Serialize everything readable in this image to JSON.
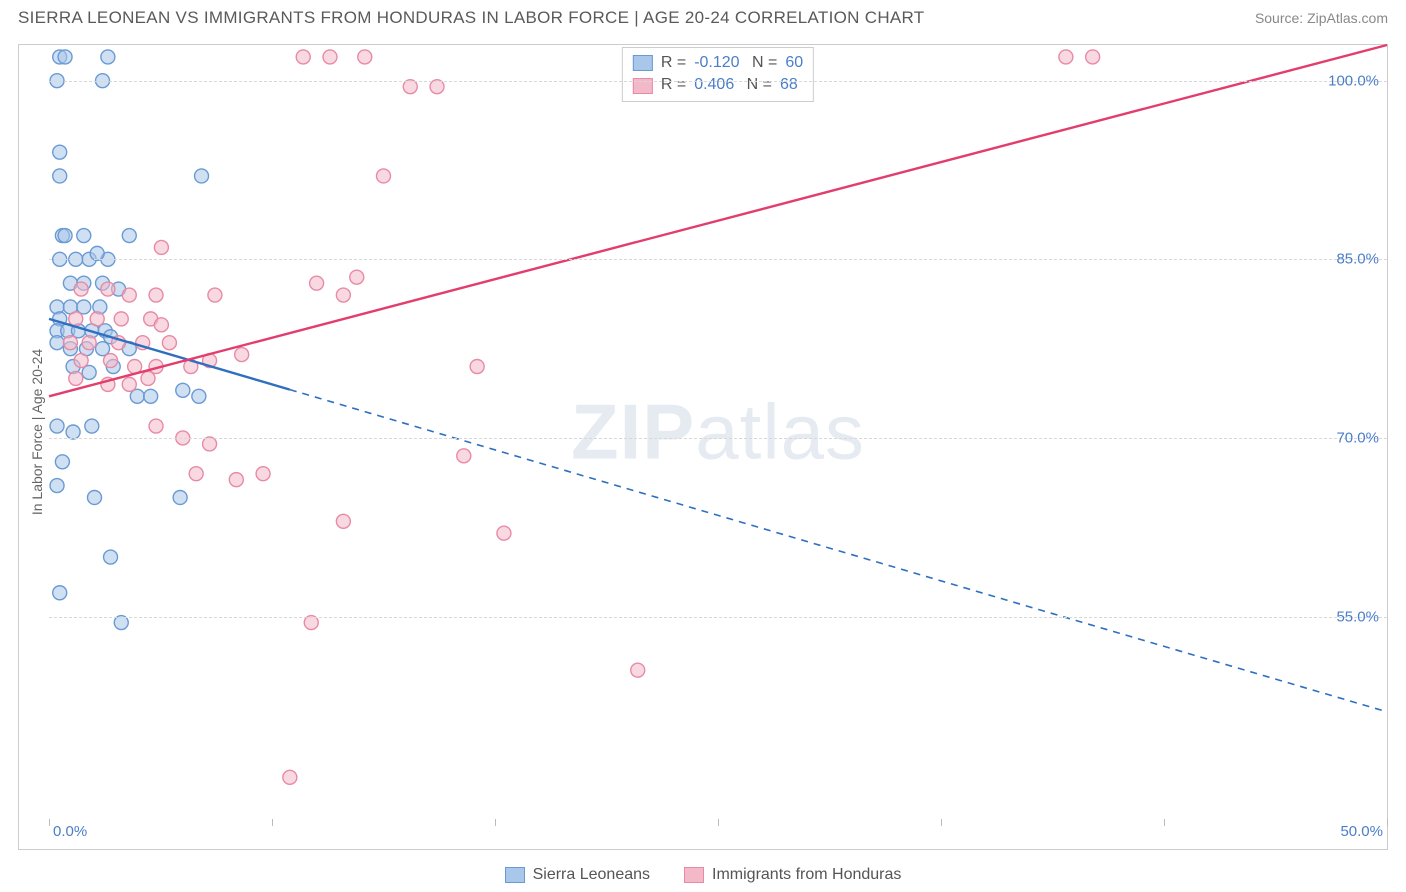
{
  "header": {
    "title": "SIERRA LEONEAN VS IMMIGRANTS FROM HONDURAS IN LABOR FORCE | AGE 20-24 CORRELATION CHART",
    "source": "Source: ZipAtlas.com"
  },
  "watermark": {
    "bold": "ZIP",
    "rest": "atlas"
  },
  "chart": {
    "type": "scatter-with-regression",
    "ylabel": "In Labor Force | Age 20-24",
    "xlim": [
      0,
      50
    ],
    "ylim": [
      38,
      103
    ],
    "x_ticks": [
      0,
      8.33,
      16.67,
      25,
      33.33,
      41.67,
      50
    ],
    "x_tick_labels_shown": {
      "0": "0.0%",
      "50": "50.0%"
    },
    "y_grid": [
      55.0,
      70.0,
      85.0,
      100.0
    ],
    "y_tick_labels": [
      "55.0%",
      "70.0%",
      "85.0%",
      "100.0%"
    ],
    "grid_color": "#d8d8d8",
    "axis_color": "#cccccc",
    "tick_label_color": "#4a7ec9",
    "background_color": "#ffffff",
    "marker_radius": 7,
    "marker_opacity": 0.55,
    "series": [
      {
        "name": "Sierra Leoneans",
        "color_fill": "#a9c7ea",
        "color_stroke": "#6a9ad4",
        "line_color": "#2f6fc0",
        "R": "-0.120",
        "N": "60",
        "reg_line": {
          "x1": 0,
          "y1": 80.0,
          "x2": 50,
          "y2": 47.0
        },
        "reg_solid_until_x": 9.0,
        "points": [
          [
            0.4,
            102
          ],
          [
            0.6,
            102
          ],
          [
            2.2,
            102
          ],
          [
            0.3,
            100
          ],
          [
            2.0,
            100
          ],
          [
            0.4,
            94
          ],
          [
            0.4,
            92
          ],
          [
            5.7,
            92
          ],
          [
            0.5,
            87
          ],
          [
            1.3,
            87
          ],
          [
            3.0,
            87
          ],
          [
            0.6,
            87
          ],
          [
            0.4,
            85
          ],
          [
            1.0,
            85
          ],
          [
            1.5,
            85
          ],
          [
            2.2,
            85
          ],
          [
            1.8,
            85.5
          ],
          [
            0.8,
            83
          ],
          [
            1.3,
            83
          ],
          [
            2.0,
            83
          ],
          [
            2.6,
            82.5
          ],
          [
            0.3,
            81
          ],
          [
            0.8,
            81
          ],
          [
            1.3,
            81
          ],
          [
            1.9,
            81
          ],
          [
            0.4,
            80
          ],
          [
            0.3,
            79
          ],
          [
            0.7,
            79
          ],
          [
            1.1,
            79
          ],
          [
            1.6,
            79
          ],
          [
            2.1,
            79
          ],
          [
            2.3,
            78.5
          ],
          [
            0.3,
            78
          ],
          [
            0.8,
            77.5
          ],
          [
            1.4,
            77.5
          ],
          [
            2.0,
            77.5
          ],
          [
            3.0,
            77.5
          ],
          [
            0.9,
            76
          ],
          [
            1.5,
            75.5
          ],
          [
            2.4,
            76
          ],
          [
            3.3,
            73.5
          ],
          [
            3.8,
            73.5
          ],
          [
            5.0,
            74
          ],
          [
            5.6,
            73.5
          ],
          [
            0.3,
            71
          ],
          [
            0.9,
            70.5
          ],
          [
            1.6,
            71
          ],
          [
            0.5,
            68
          ],
          [
            0.3,
            66
          ],
          [
            1.7,
            65
          ],
          [
            4.9,
            65
          ],
          [
            2.3,
            60
          ],
          [
            0.4,
            57
          ],
          [
            2.7,
            54.5
          ]
        ]
      },
      {
        "name": "Immigrants from Honduras",
        "color_fill": "#f4b9c9",
        "color_stroke": "#e88aa5",
        "line_color": "#e23d6d",
        "R": "0.406",
        "N": "68",
        "reg_line": {
          "x1": 0,
          "y1": 73.5,
          "x2": 50,
          "y2": 103.0
        },
        "reg_solid_until_x": 50,
        "points": [
          [
            9.5,
            102
          ],
          [
            10.5,
            102
          ],
          [
            11.8,
            102
          ],
          [
            24.5,
            102
          ],
          [
            25.5,
            102
          ],
          [
            38.0,
            102
          ],
          [
            39.0,
            102
          ],
          [
            13.5,
            99.5
          ],
          [
            14.5,
            99.5
          ],
          [
            12.5,
            92
          ],
          [
            4.2,
            86
          ],
          [
            1.2,
            82.5
          ],
          [
            2.2,
            82.5
          ],
          [
            3.0,
            82
          ],
          [
            4.0,
            82
          ],
          [
            6.2,
            82
          ],
          [
            10.0,
            83
          ],
          [
            11.0,
            82
          ],
          [
            11.5,
            83.5
          ],
          [
            1.0,
            80
          ],
          [
            1.8,
            80
          ],
          [
            2.7,
            80
          ],
          [
            3.8,
            80
          ],
          [
            4.2,
            79.5
          ],
          [
            0.8,
            78
          ],
          [
            1.5,
            78
          ],
          [
            2.6,
            78
          ],
          [
            3.5,
            78
          ],
          [
            4.5,
            78
          ],
          [
            1.2,
            76.5
          ],
          [
            2.3,
            76.5
          ],
          [
            3.2,
            76
          ],
          [
            4.0,
            76
          ],
          [
            5.3,
            76
          ],
          [
            6.0,
            76.5
          ],
          [
            7.2,
            77
          ],
          [
            1.0,
            75
          ],
          [
            2.2,
            74.5
          ],
          [
            3.0,
            74.5
          ],
          [
            3.7,
            75
          ],
          [
            16.0,
            76
          ],
          [
            4.0,
            71
          ],
          [
            5.0,
            70
          ],
          [
            6.0,
            69.5
          ],
          [
            5.5,
            67
          ],
          [
            7.0,
            66.5
          ],
          [
            8.0,
            67
          ],
          [
            11.0,
            63
          ],
          [
            15.5,
            68.5
          ],
          [
            17.0,
            62
          ],
          [
            9.8,
            54.5
          ],
          [
            22.0,
            50.5
          ],
          [
            9.0,
            41.5
          ]
        ]
      }
    ],
    "stat_legend": {
      "rows": [
        {
          "swatch_fill": "#a9c7ea",
          "swatch_stroke": "#6a9ad4",
          "R": "-0.120",
          "N": "60"
        },
        {
          "swatch_fill": "#f4b9c9",
          "swatch_stroke": "#e88aa5",
          "R": "0.406",
          "N": "68"
        }
      ]
    },
    "bottom_legend": [
      {
        "swatch_fill": "#a9c7ea",
        "swatch_stroke": "#6a9ad4",
        "label": "Sierra Leoneans"
      },
      {
        "swatch_fill": "#f4b9c9",
        "swatch_stroke": "#e88aa5",
        "label": "Immigrants from Honduras"
      }
    ]
  }
}
